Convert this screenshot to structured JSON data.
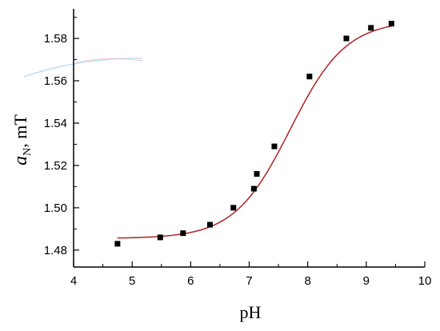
{
  "chart_data": {
    "type": "scatter",
    "title": "",
    "xlabel": "pH",
    "ylabel": {
      "symbol": "a",
      "subscript": "N",
      "rest": ", mT"
    },
    "xlim": [
      4,
      10
    ],
    "ylim": [
      1.472,
      1.594
    ],
    "xticks": [
      4,
      5,
      6,
      7,
      8,
      9,
      10
    ],
    "yticks": [
      1.48,
      1.5,
      1.52,
      1.54,
      1.56,
      1.58
    ],
    "ytick_labels": [
      "1.48",
      "1.50",
      "1.52",
      "1.54",
      "1.56",
      "1.58"
    ],
    "grid": false,
    "series": [
      {
        "kind": "points",
        "marker": "square",
        "color": "#000000",
        "x": [
          4.75,
          5.48,
          5.87,
          6.33,
          6.73,
          7.08,
          7.13,
          7.43,
          8.03,
          8.66,
          9.08,
          9.43
        ],
        "y": [
          1.483,
          1.486,
          1.488,
          1.492,
          1.5,
          1.509,
          1.516,
          1.529,
          1.562,
          1.58,
          1.585,
          1.587
        ]
      },
      {
        "kind": "fit",
        "color": "#b22222",
        "model": "sigmoid",
        "params": {
          "bottom": 1.4855,
          "top": 1.5885,
          "pKa": 7.7,
          "slope": 1.05
        },
        "x_range": [
          4.75,
          9.43
        ]
      }
    ]
  }
}
